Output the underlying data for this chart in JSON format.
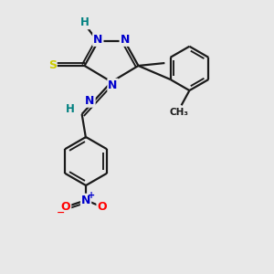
{
  "bg_color": "#e8e8e8",
  "atom_colors": {
    "N": "#0000cc",
    "S": "#cccc00",
    "O": "#ff0000",
    "C": "#000000",
    "H": "#008080"
  },
  "bond_color": "#1a1a1a",
  "bond_width": 1.6,
  "fig_width": 3.0,
  "fig_height": 3.0,
  "dpi": 100
}
